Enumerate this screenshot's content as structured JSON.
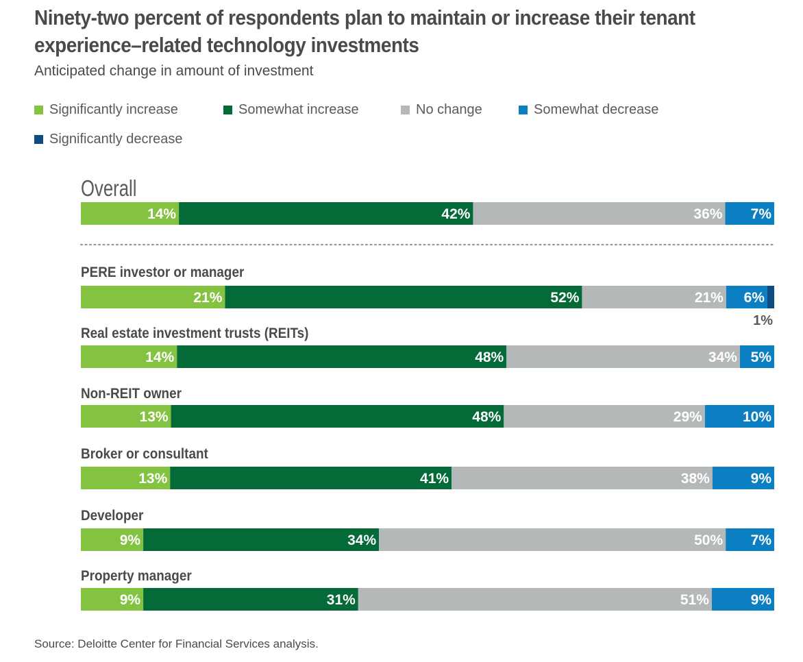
{
  "title_lines": [
    "Ninety-two percent of respondents plan to maintain or increase their tenant",
    "experience–related technology investments"
  ],
  "subtitle": "Anticipated change in amount of investment",
  "source": "Source: Deloitte Center for Financial Services analysis.",
  "colors": {
    "significantly_increase": "#84c341",
    "somewhat_increase": "#046a38",
    "no_change": "#b5b8b9",
    "somewhat_decrease": "#0b7fc1",
    "significantly_decrease": "#0f4c81"
  },
  "chart_data": {
    "type": "bar",
    "orientation": "horizontal",
    "stacked": true,
    "title": "Ninety-two percent of respondents plan to maintain or increase their tenant experience–related technology investments",
    "subtitle": "Anticipated change in amount of investment",
    "categories": [
      "Overall",
      "PERE investor or manager",
      "Real estate investment trusts (REITs)",
      "Non-REIT owner",
      "Broker or consultant",
      "Developer",
      "Property manager"
    ],
    "series": [
      {
        "name": "Significantly increase",
        "values": [
          14,
          21,
          14,
          13,
          13,
          9,
          9
        ]
      },
      {
        "name": "Somewhat increase",
        "values": [
          42,
          52,
          48,
          48,
          41,
          34,
          31
        ]
      },
      {
        "name": "No change",
        "values": [
          36,
          21,
          34,
          29,
          38,
          50,
          51
        ]
      },
      {
        "name": "Somewhat decrease",
        "values": [
          7,
          6,
          5,
          10,
          9,
          7,
          9
        ]
      },
      {
        "name": "Significantly decrease",
        "values": [
          0,
          1,
          0,
          0,
          0,
          0,
          0
        ]
      }
    ],
    "legend_position": "top",
    "grid": false
  }
}
